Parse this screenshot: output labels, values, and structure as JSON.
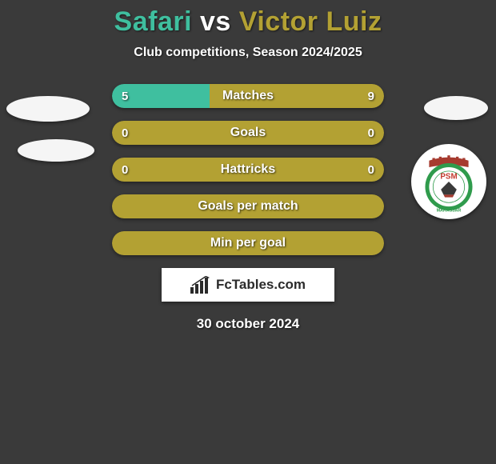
{
  "title": {
    "player1": "Safari",
    "vs": "vs",
    "player2": "Victor Luiz",
    "player1_color": "#3fbf9f",
    "player2_color": "#b3a133",
    "vs_color": "#ffffff"
  },
  "subtitle": "Club competitions, Season 2024/2025",
  "colors": {
    "left": "#3fbf9f",
    "right": "#b3a133",
    "bg": "#3a3a3a",
    "bar_shadow": "rgba(0,0,0,0.4)"
  },
  "stats": [
    {
      "label": "Matches",
      "left_val": "5",
      "right_val": "9",
      "left_pct": 36,
      "right_pct": 64
    },
    {
      "label": "Goals",
      "left_val": "0",
      "right_val": "0",
      "left_pct": 0,
      "right_pct": 100
    },
    {
      "label": "Hattricks",
      "left_val": "0",
      "right_val": "0",
      "left_pct": 0,
      "right_pct": 100
    },
    {
      "label": "Goals per match",
      "left_val": "",
      "right_val": "",
      "left_pct": 0,
      "right_pct": 100
    },
    {
      "label": "Min per goal",
      "left_val": "",
      "right_val": "",
      "left_pct": 0,
      "right_pct": 100
    }
  ],
  "brand": {
    "text": "FcTables.com"
  },
  "date": "30 october 2024",
  "club_badge": {
    "top_color": "#a63b2f",
    "ring_outer": "#2f9b4c",
    "ring_inner": "#ffffff",
    "center_bg": "#ffffff",
    "text": "PSM",
    "subtext": "MAKASSAR",
    "text_color": "#c33a2e"
  }
}
